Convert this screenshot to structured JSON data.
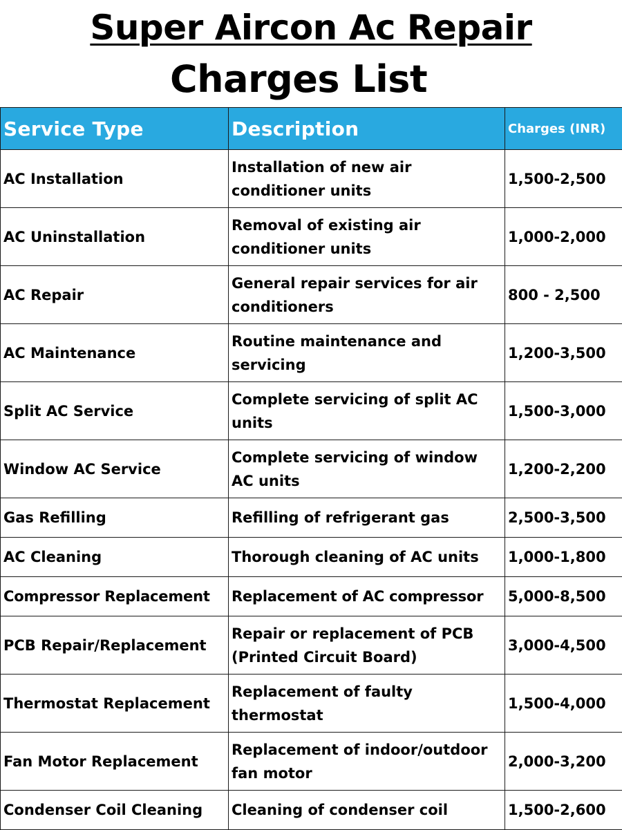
{
  "title": {
    "line1": "Super Aircon Ac Repair",
    "line2": "Charges List"
  },
  "table": {
    "headers": {
      "service": "Service Type",
      "description": "Description",
      "charges": "Charges (INR)"
    },
    "rows": [
      {
        "service": "AC Installation",
        "description": "Installation of new air conditioner units",
        "charges": "1,500-2,500"
      },
      {
        "service": "AC Uninstallation",
        "description": "Removal of existing air conditioner units",
        "charges": "1,000-2,000"
      },
      {
        "service": "AC Repair",
        "description": "General repair services for air conditioners",
        "charges": "800 - 2,500"
      },
      {
        "service": "AC Maintenance",
        "description": "Routine maintenance and servicing",
        "charges": "1,200-3,500"
      },
      {
        "service": "Split AC Service",
        "description": "Complete servicing of split AC units",
        "charges": "1,500-3,000"
      },
      {
        "service": "Window AC Service",
        "description": "Complete servicing of window AC units",
        "charges": "1,200-2,200"
      },
      {
        "service": "Gas Refilling",
        "description": "Refilling of refrigerant gas",
        "charges": "2,500-3,500"
      },
      {
        "service": "AC Cleaning",
        "description": "Thorough cleaning of AC units",
        "charges": "1,000-1,800"
      },
      {
        "service": "Compressor Replacement",
        "description": "Replacement of AC compressor",
        "charges": "5,000-8,500"
      },
      {
        "service": "PCB Repair/Replacement",
        "description": "Repair or replacement of PCB (Printed Circuit Board)",
        "charges": "3,000-4,500"
      },
      {
        "service": "Thermostat Replacement",
        "description": "Replacement of faulty thermostat",
        "charges": "1,500-4,000"
      },
      {
        "service": "Fan Motor Replacement",
        "description": "Replacement of indoor/outdoor fan motor",
        "charges": "2,000-3,200"
      },
      {
        "service": "Condenser Coil Cleaning",
        "description": "Cleaning of condenser coil",
        "charges": "1,500-2,600"
      }
    ]
  },
  "colors": {
    "header_background": "#29a9e0",
    "header_text": "#ffffff",
    "border": "#1a1a1a",
    "text": "#000000"
  }
}
